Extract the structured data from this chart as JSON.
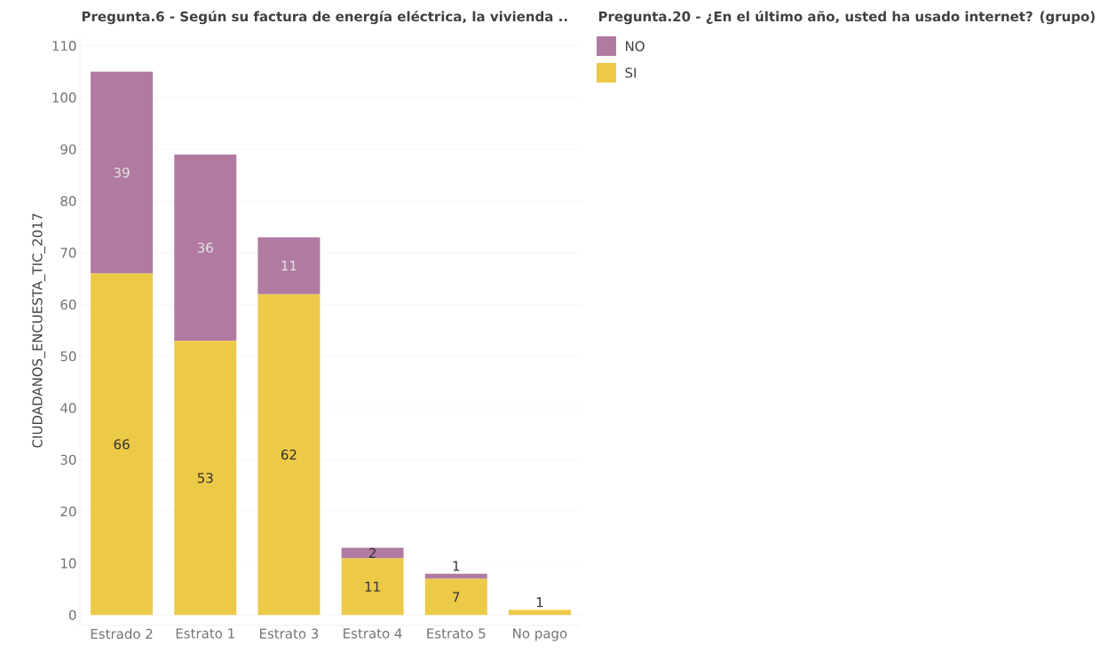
{
  "chart_data": {
    "type": "bar",
    "stacked": true,
    "title": "Pregunta.6 - Según su factura de energía eléctrica, la vivienda ..",
    "ylabel": "CIUDADANOS_ENCUESTA_TIC_2017",
    "legend_title": "Pregunta.20 - ¿En el último año, usted ha usado internet? (grupo)",
    "categories": [
      "Estrado 2",
      "Estrato 1",
      "Estrato 3",
      "Estrato 4",
      "Estrato 5",
      "No pago"
    ],
    "series": [
      {
        "name": "SI",
        "color": "#edc948",
        "values": [
          66,
          53,
          62,
          11,
          7,
          1
        ]
      },
      {
        "name": "NO",
        "color": "#b07aa1",
        "values": [
          39,
          36,
          11,
          2,
          1,
          null
        ]
      }
    ],
    "ylim": [
      -2,
      112
    ],
    "yticks": [
      0,
      10,
      20,
      30,
      40,
      50,
      60,
      70,
      80,
      90,
      100,
      110
    ],
    "grid": "y",
    "legend": "top right",
    "data_labels": true
  }
}
